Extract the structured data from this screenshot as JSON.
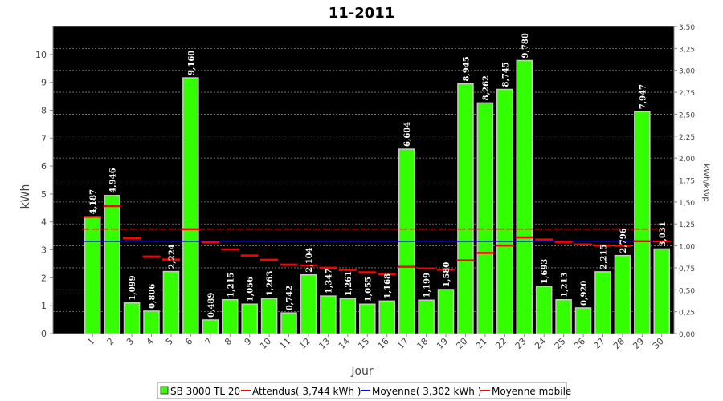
{
  "chart_data": {
    "type": "bar",
    "title": "11-2011",
    "xlabel": "Jour",
    "ylabel": "kWh",
    "y2label": "kWh/kWp",
    "ylim": [
      0,
      11
    ],
    "y2lim": [
      0,
      3.5
    ],
    "yticks": [
      "0",
      "1",
      "2",
      "3",
      "4",
      "5",
      "6",
      "7",
      "8",
      "9",
      "10"
    ],
    "y2ticks": [
      "0,00",
      "0,25",
      "0,50",
      "0,75",
      "1,00",
      "1,25",
      "1,50",
      "1,75",
      "2,00",
      "2,25",
      "2,50",
      "2,75",
      "3,00",
      "3,25",
      "3,50"
    ],
    "grid": true,
    "legend_position": "bottom",
    "colors": {
      "background": "#000000",
      "bar": "#33ff00",
      "bar_edge": "#c8c8c8",
      "expected": "#ff0000",
      "average": "#0000ff",
      "moving_avg": "#ff0000",
      "grid": "#808080"
    },
    "categories": [
      "1",
      "2",
      "3",
      "4",
      "5",
      "6",
      "7",
      "8",
      "9",
      "10",
      "11",
      "12",
      "13",
      "14",
      "15",
      "16",
      "17",
      "18",
      "19",
      "20",
      "21",
      "22",
      "23",
      "24",
      "25",
      "26",
      "27",
      "28",
      "29",
      "30"
    ],
    "series": [
      {
        "name": "SB 3000 TL 20",
        "values": [
          4.187,
          4.946,
          1.099,
          0.806,
          2.224,
          9.16,
          0.489,
          1.215,
          1.056,
          1.263,
          0.742,
          2.104,
          1.347,
          1.261,
          1.055,
          1.168,
          6.604,
          1.199,
          1.58,
          8.945,
          8.262,
          8.745,
          9.78,
          1.693,
          1.213,
          0.92,
          2.215,
          2.796,
          7.947,
          3.031
        ],
        "labels": [
          "4,187",
          "4,946",
          "1,099",
          "0,806",
          "2,224",
          "9,160",
          "0,489",
          "1,215",
          "1,056",
          "1,263",
          "0,742",
          "2,104",
          "1,347",
          "1,261",
          "1,055",
          "1,168",
          "6,604",
          "1,199",
          "1,580",
          "8,945",
          "8,262",
          "8,745",
          "9,780",
          "1,693",
          "1,213",
          "0,920",
          "2,215",
          "2,796",
          "7,947",
          "3,031"
        ]
      },
      {
        "name": "Moyenne mobile",
        "values": [
          4.187,
          4.567,
          3.411,
          2.76,
          2.652,
          3.737,
          3.273,
          3.016,
          2.798,
          2.645,
          2.472,
          2.443,
          2.358,
          2.28,
          2.198,
          2.133,
          2.396,
          2.329,
          2.29,
          2.623,
          2.891,
          3.157,
          3.445,
          3.372,
          3.286,
          3.195,
          3.159,
          3.146,
          3.311,
          3.302
        ]
      }
    ],
    "expected": {
      "name": "Attendus( 3,744 kWh )",
      "value": 3.744
    },
    "average": {
      "name": "Moyenne( 3,302 kWh )",
      "value": 3.302
    }
  }
}
